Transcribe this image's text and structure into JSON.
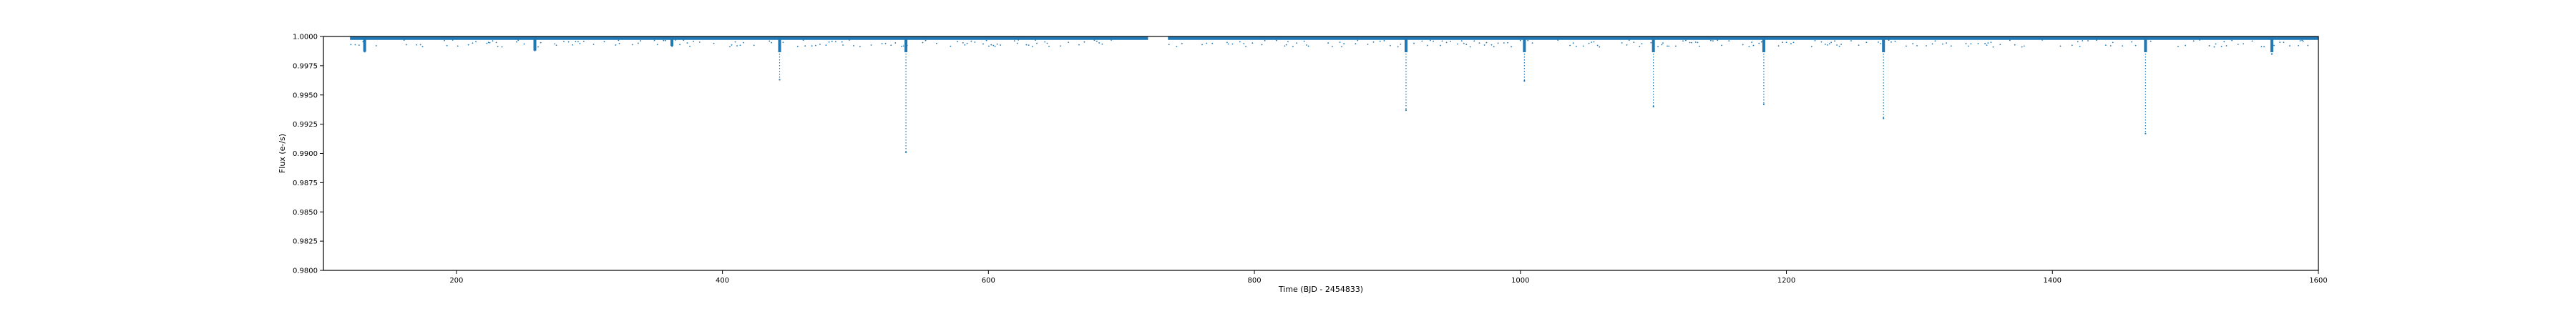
{
  "chart_data": {
    "type": "scatter",
    "title": "",
    "xlabel": "Time (BJD - 2454833)",
    "ylabel": "Flux (e-/s)",
    "xlim": [
      100,
      1600
    ],
    "ylim": [
      0.98,
      1.0
    ],
    "xticks": [
      200,
      400,
      600,
      800,
      1000,
      1200,
      1400,
      1600
    ],
    "yticks": [
      0.98,
      0.9825,
      0.985,
      0.9875,
      0.99,
      0.9925,
      0.995,
      0.9975,
      1.0
    ],
    "ytick_labels": [
      "0.9800",
      "0.9825",
      "0.9850",
      "0.9875",
      "0.9900",
      "0.9925",
      "0.9950",
      "0.9975",
      "1.0000"
    ],
    "grid": false,
    "series": [
      {
        "color": "#1f77b4",
        "marker": "point",
        "baseline": 0.9998,
        "observation_segments": [
          [
            120,
            720
          ],
          [
            735,
            1600
          ]
        ],
        "dips": [
          {
            "x": 131,
            "depth": 0.9987
          },
          {
            "x": 259,
            "depth": 0.9988
          },
          {
            "x": 362,
            "depth": 0.9992
          },
          {
            "x": 443,
            "depth": 0.9963
          },
          {
            "x": 538,
            "depth": 0.9901
          },
          {
            "x": 914,
            "depth": 0.9937
          },
          {
            "x": 1003,
            "depth": 0.9962
          },
          {
            "x": 1100,
            "depth": 0.994
          },
          {
            "x": 1183,
            "depth": 0.9942
          },
          {
            "x": 1273,
            "depth": 0.993
          },
          {
            "x": 1470,
            "depth": 0.9917
          },
          {
            "x": 1565,
            "depth": 0.9985
          }
        ]
      }
    ]
  }
}
